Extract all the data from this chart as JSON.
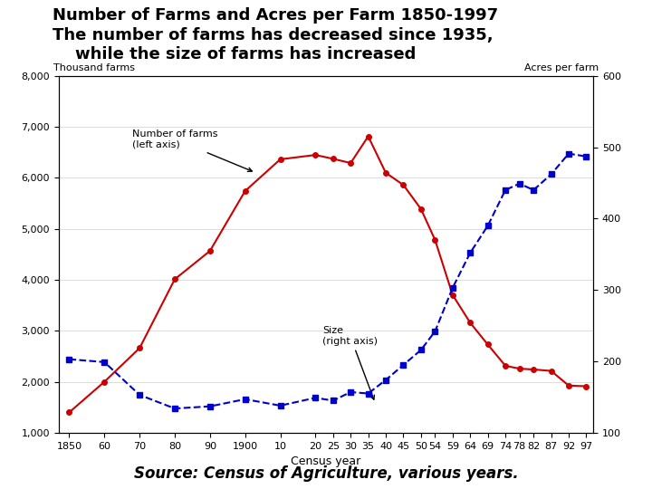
{
  "title_line1": "Number of Farms and Acres per Farm 1850-1997",
  "title_line2": "The number of farms has decreased since 1935,",
  "title_line3": "    while the size of farms has increased",
  "source": "Source: Census of Agriculture, various years.",
  "xlabel": "Census year",
  "ylabel_left": "Thousand farms",
  "ylabel_right": "Acres per farm",
  "years": [
    1850,
    1860,
    1870,
    1880,
    1890,
    1900,
    1910,
    1920,
    1925,
    1930,
    1935,
    1940,
    1945,
    1950,
    1954,
    1959,
    1964,
    1969,
    1974,
    1978,
    1982,
    1987,
    1992,
    1997
  ],
  "num_farms": [
    1400,
    2000,
    2660,
    4010,
    4565,
    5740,
    6362,
    6448,
    6372,
    6289,
    6812,
    6097,
    5859,
    5388,
    4782,
    3703,
    3157,
    2730,
    2314,
    2257,
    2241,
    2213,
    1925,
    1912
  ],
  "acres_per_farm": [
    203,
    199,
    153,
    134,
    137,
    147,
    138,
    149,
    145,
    157,
    155,
    174,
    195,
    216,
    242,
    303,
    352,
    390,
    440,
    449,
    440,
    462,
    491,
    487
  ],
  "farm_color": "#cc0000",
  "size_color": "#0000cc",
  "ylim_left": [
    1000,
    8000
  ],
  "ylim_right": [
    100,
    600
  ],
  "yticks_left": [
    1000,
    2000,
    3000,
    4000,
    5000,
    6000,
    7000,
    8000
  ],
  "yticks_right": [
    100,
    200,
    300,
    400,
    500,
    600
  ],
  "xtick_labels": [
    "1850",
    "60",
    "70",
    "80",
    "90",
    "1900",
    "10",
    "20",
    "25",
    "30",
    "35",
    "40",
    "45",
    "50",
    "54",
    "59",
    "64",
    "69",
    "74",
    "78",
    "82",
    "87",
    "92",
    "97"
  ],
  "bg_color": "#ffffff",
  "title_fontsize": 13,
  "axis_label_fontsize": 8,
  "tick_fontsize": 8,
  "annot_fontsize": 8,
  "source_fontsize": 12
}
